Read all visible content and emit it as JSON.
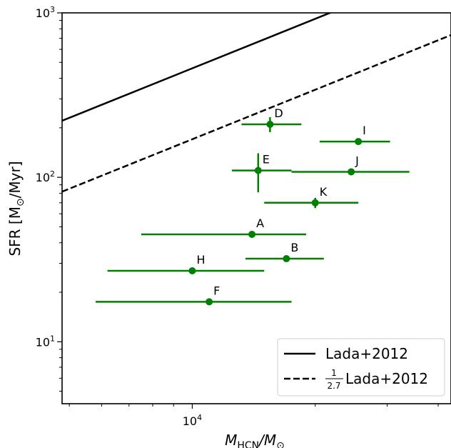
{
  "chart_data": {
    "type": "scatter",
    "xlabel_main": "M",
    "xlabel_sub": "HCN",
    "xlabel_sep": "/M",
    "xlabel_sun": "⊙",
    "ylabel_main": "SFR [M",
    "ylabel_sun": "⊙",
    "ylabel_end": "/Myr]",
    "x_scale": "log",
    "y_scale": "log",
    "xlim": [
      4800,
      43000
    ],
    "ylim": [
      4.2,
      1000
    ],
    "x_tick_major": {
      "value": 10000,
      "base": "10",
      "exp": "4"
    },
    "y_tick_majors": [
      {
        "value": 10,
        "base": "10",
        "exp": "1"
      },
      {
        "value": 100,
        "base": "10",
        "exp": "2"
      },
      {
        "value": 1000,
        "base": "10",
        "exp": "3"
      }
    ],
    "grid": false,
    "points": [
      {
        "label": "A",
        "x": 14000,
        "y": 45,
        "xerr": [
          7500,
          19000
        ],
        "yerr": [
          44.5,
          45.5
        ]
      },
      {
        "label": "B",
        "x": 17000,
        "y": 32,
        "xerr": [
          13500,
          21000
        ],
        "yerr": [
          31.4,
          32.6
        ]
      },
      {
        "label": "D",
        "x": 15500,
        "y": 210,
        "xerr": [
          13200,
          18500
        ],
        "yerr": [
          188,
          232
        ]
      },
      {
        "label": "E",
        "x": 14500,
        "y": 110,
        "xerr": [
          12500,
          17500
        ],
        "yerr": [
          81,
          140
        ]
      },
      {
        "label": "F",
        "x": 11000,
        "y": 17.5,
        "xerr": [
          5800,
          17500
        ],
        "yerr": [
          17.1,
          17.9
        ]
      },
      {
        "label": "H",
        "x": 10000,
        "y": 27,
        "xerr": [
          6200,
          15000
        ],
        "yerr": [
          26.5,
          27.5
        ]
      },
      {
        "label": "I",
        "x": 25500,
        "y": 165,
        "xerr": [
          20500,
          30500
        ],
        "yerr": [
          160,
          170
        ]
      },
      {
        "label": "J",
        "x": 24500,
        "y": 108,
        "xerr": [
          17500,
          34000
        ],
        "yerr": [
          105,
          111
        ]
      },
      {
        "label": "K",
        "x": 20000,
        "y": 70,
        "xerr": [
          15000,
          25500
        ],
        "yerr": [
          65,
          75
        ]
      }
    ],
    "point_color": "#008000",
    "lines": [
      {
        "name": "Lada+2012",
        "style": "solid",
        "coef": 0.046
      },
      {
        "name": "Lada+2012",
        "prefix_num": "1",
        "prefix_den": "2.7",
        "style": "dashed",
        "coef": 0.01704
      }
    ],
    "legend_position": "lower-right"
  }
}
